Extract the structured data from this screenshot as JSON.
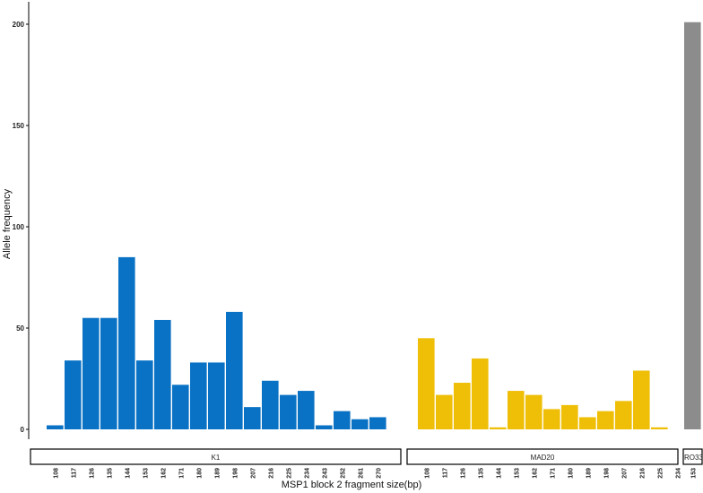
{
  "chart_data": {
    "type": "bar",
    "xlabel": "MSP1 block 2 fragment size(bp)",
    "ylabel": "Allele frequency",
    "ylim": [
      0,
      205
    ],
    "yticks": [
      0,
      50,
      100,
      150,
      200
    ],
    "grid": false,
    "legend": "none",
    "panels": [
      {
        "name": "K1",
        "color": "#0a72c4",
        "categories": [
          "108",
          "117",
          "126",
          "135",
          "144",
          "153",
          "162",
          "171",
          "180",
          "189",
          "198",
          "207",
          "216",
          "225",
          "234",
          "243",
          "252",
          "261",
          "270"
        ],
        "values": [
          2,
          34,
          55,
          55,
          85,
          34,
          54,
          22,
          33,
          33,
          58,
          11,
          24,
          17,
          19,
          2,
          9,
          5,
          6
        ]
      },
      {
        "name": "MAD20",
        "color": "#efbf08",
        "categories": [
          "108",
          "117",
          "126",
          "135",
          "144",
          "153",
          "162",
          "171",
          "180",
          "189",
          "198",
          "207",
          "216",
          "225",
          "234"
        ],
        "values": [
          45,
          17,
          23,
          35,
          1,
          19,
          17,
          10,
          12,
          6,
          9,
          14,
          29,
          1,
          0
        ]
      },
      {
        "name": "RO33",
        "color": "#8c8c8c",
        "categories": [
          "153"
        ],
        "values": [
          201
        ]
      }
    ]
  }
}
